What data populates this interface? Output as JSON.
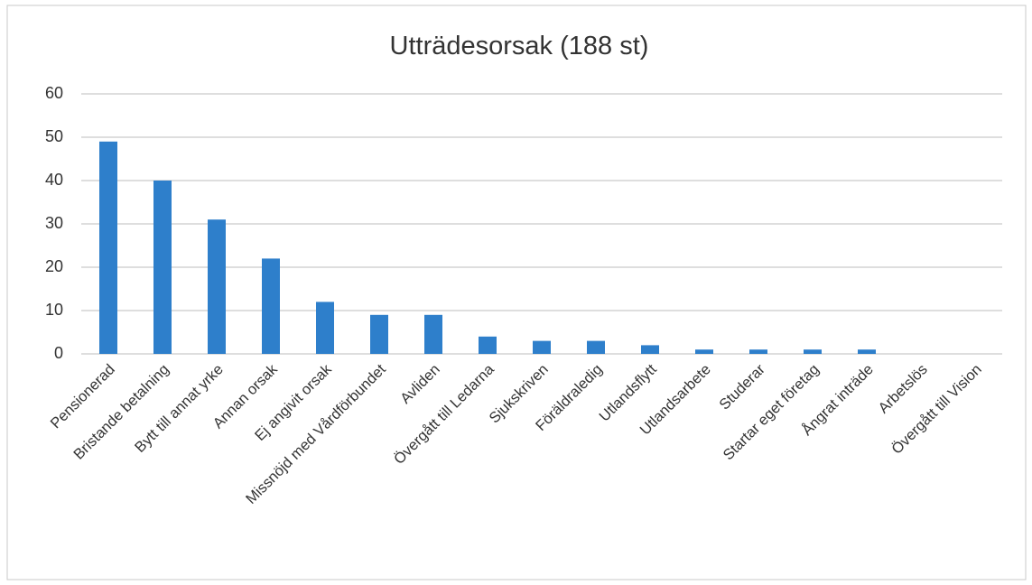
{
  "chart_data": {
    "type": "bar",
    "title": "Utträdesorsak (188 st)",
    "categories": [
      "Pensionerad",
      "Bristande betalning",
      "Bytt till annat yrke",
      "Annan orsak",
      "Ej angivit orsak",
      "Missnöjd med Vårdförbundet",
      "Avliden",
      "Övergått till Ledarna",
      "Sjukskriven",
      "Föräldraledig",
      "Utlandsflytt",
      "Utlandsarbete",
      "Studerar",
      "Startar eget företag",
      "Ångrat inträde",
      "Arbetslös",
      "Övergått till Vision"
    ],
    "values": [
      49,
      40,
      31,
      22,
      12,
      9,
      9,
      4,
      3,
      3,
      2,
      1,
      1,
      1,
      1,
      0,
      0
    ],
    "color": "#2e7fcb",
    "ylim": [
      0,
      60
    ],
    "yticks": [
      0,
      10,
      20,
      30,
      40,
      50,
      60
    ],
    "grid": true
  }
}
